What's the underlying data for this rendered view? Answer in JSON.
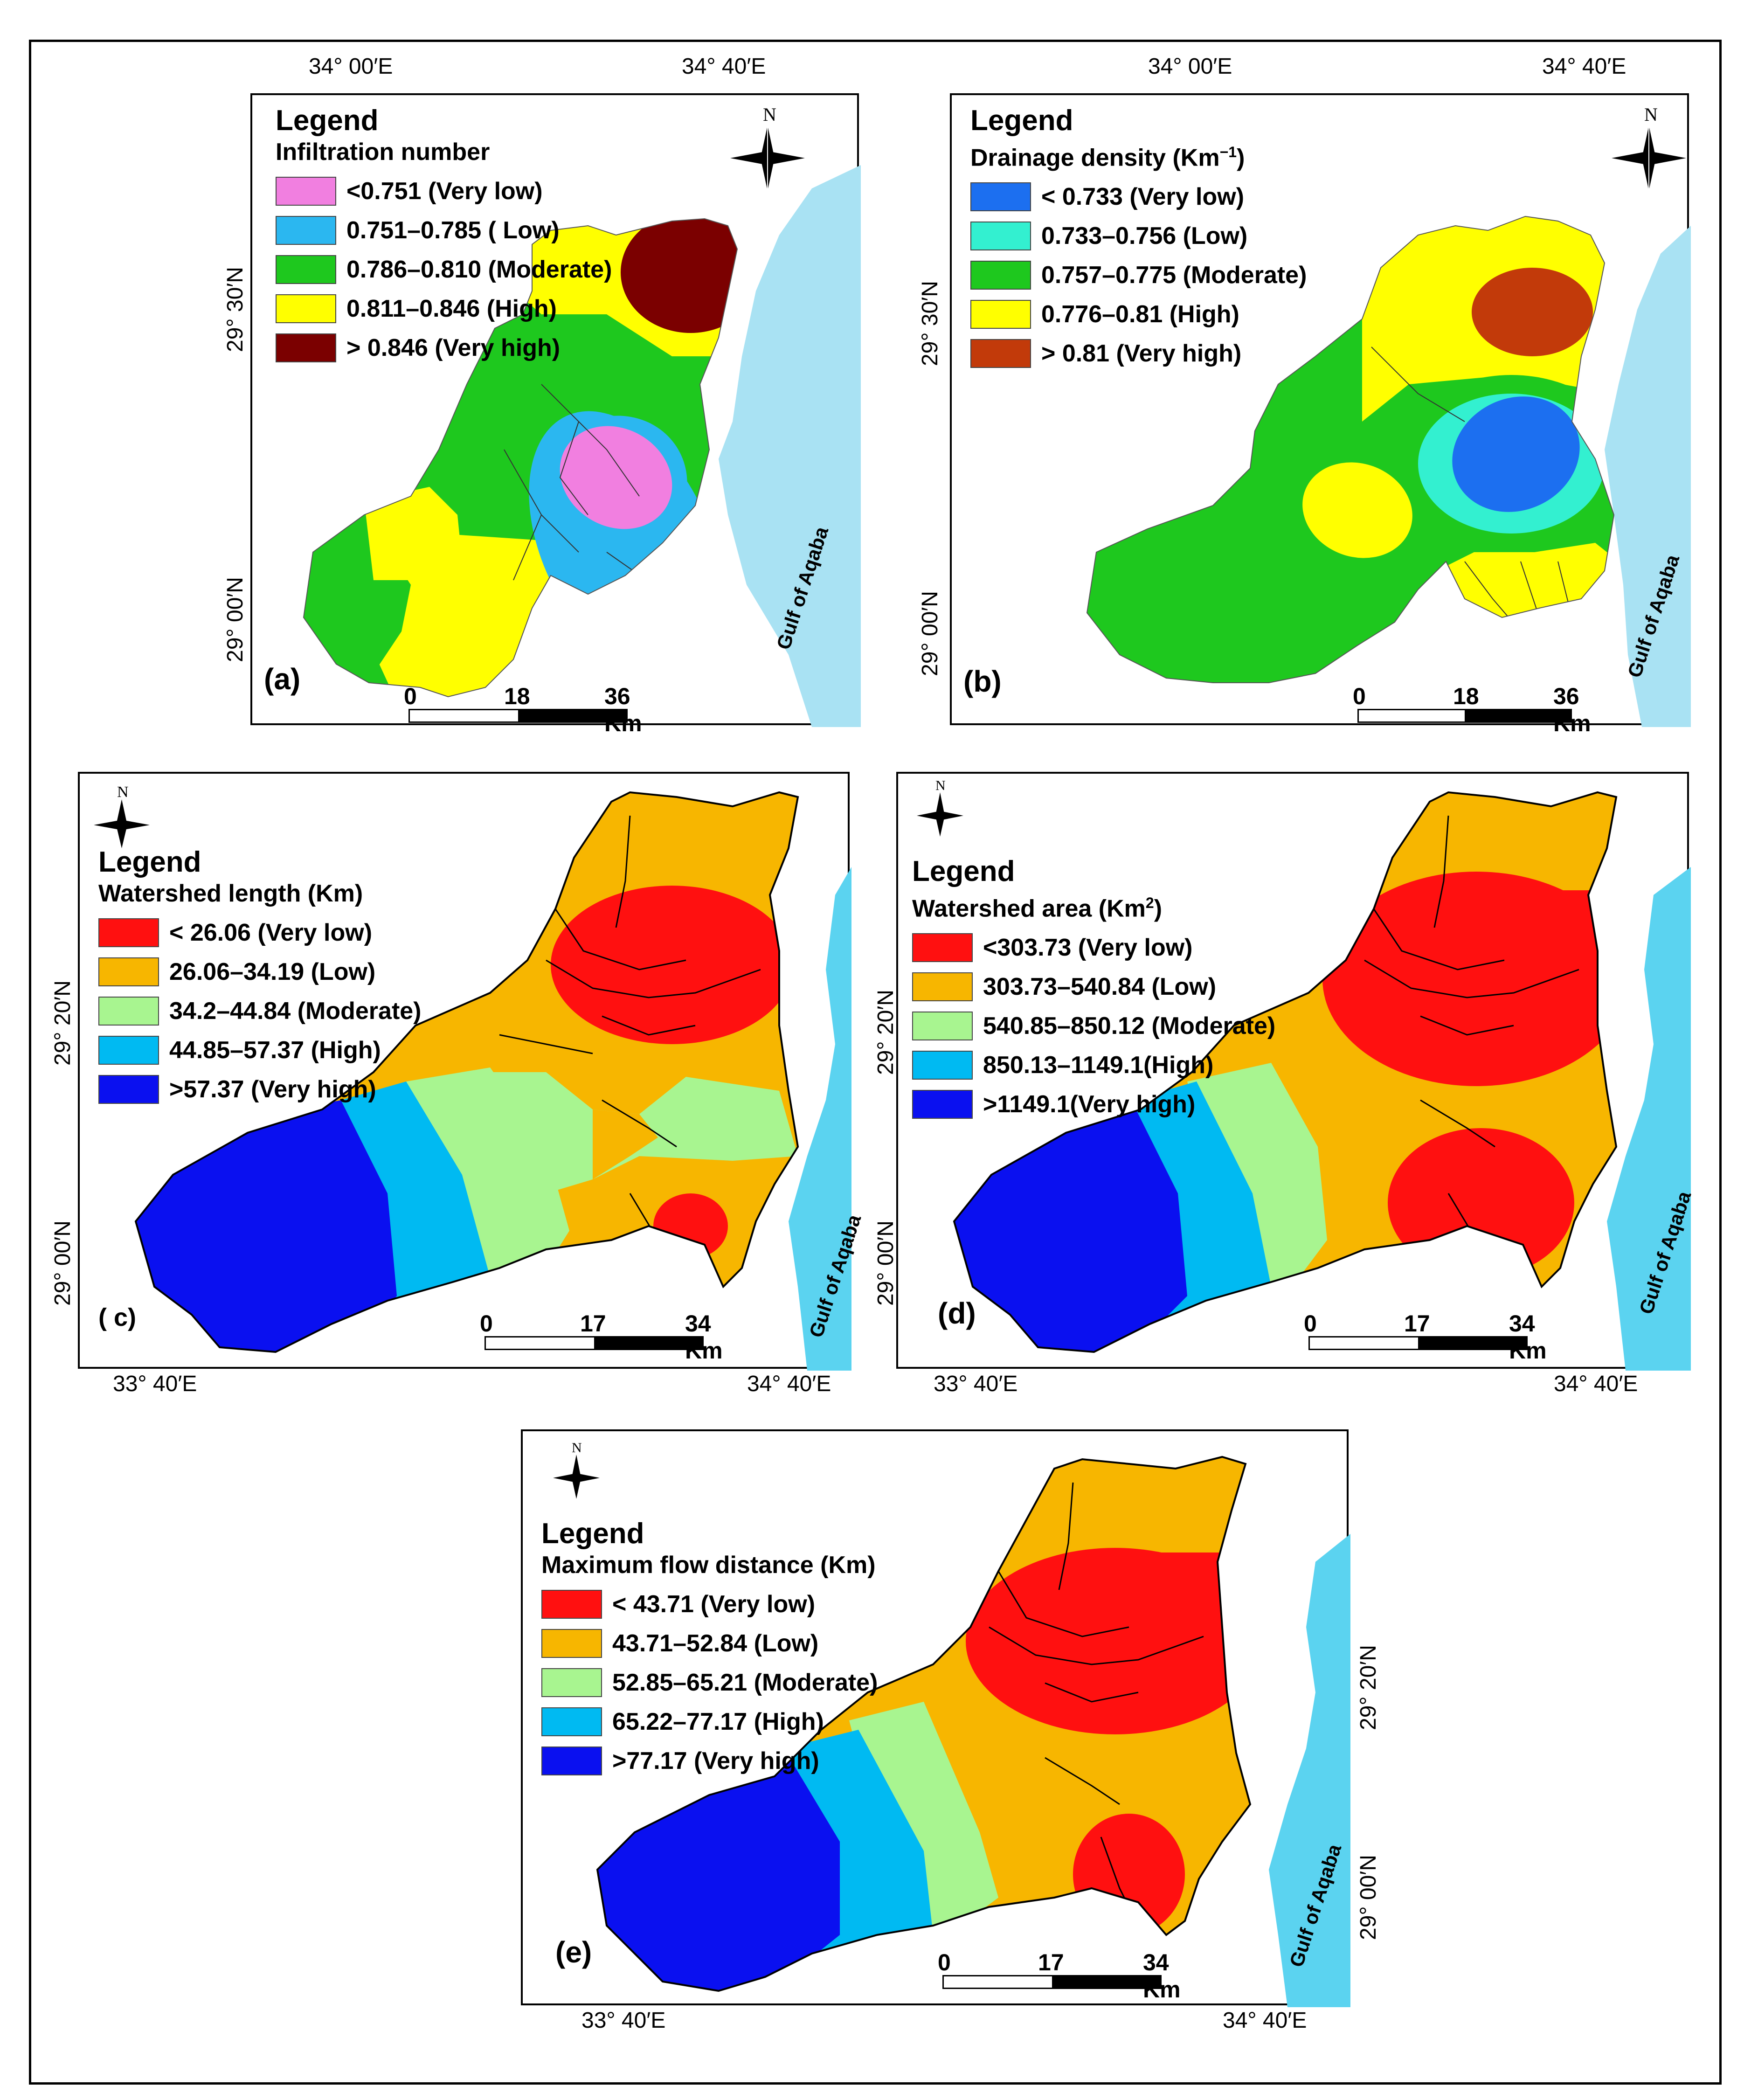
{
  "panels": {
    "a": {
      "label": "(a)",
      "legend_title": "Legend",
      "subtitle": "Infiltration number",
      "classes": [
        {
          "label": "<0.751 (Very low)",
          "color": "#f17fe0"
        },
        {
          "label": "0.751–0.785 ( Low)",
          "color": "#2bb7f0"
        },
        {
          "label": "0.786–0.810 (Moderate)",
          "color": "#1ec81e"
        },
        {
          "label": "0.811–0.846 (High)",
          "color": "#ffff00"
        },
        {
          "label": "> 0.846 (Very high)",
          "color": "#7b0000"
        }
      ],
      "scale": {
        "n0": "0",
        "n1": "18",
        "n2": "36 Km"
      },
      "coords": {
        "top1": "34° 00′E",
        "top2": "34° 40′E",
        "left1": "29° 30′N",
        "left2": "29° 00′N"
      }
    },
    "b": {
      "label": "(b)",
      "legend_title": "Legend",
      "subtitle": "Drainage density (Km",
      "subtitle_sup": "−1",
      "subtitle_end": ")",
      "classes": [
        {
          "label": "< 0.733 (Very low)",
          "color": "#1c6ff0"
        },
        {
          "label": "0.733–0.756 (Low)",
          "color": "#33f0d0"
        },
        {
          "label": "0.757–0.775 (Moderate)",
          "color": "#1ec81e"
        },
        {
          "label": "0.776–0.81 (High)",
          "color": "#ffff00"
        },
        {
          "label": "> 0.81 (Very high)",
          "color": "#c23a0a"
        }
      ],
      "scale": {
        "n0": "0",
        "n1": "18",
        "n2": "36 Km"
      },
      "coords": {
        "top1": "34° 00′E",
        "top2": "34° 40′E",
        "left1": "29° 30′N",
        "left2": "29° 00′N"
      }
    },
    "c": {
      "label": "( c)",
      "legend_title": "Legend",
      "subtitle": "Watershed length (Km)",
      "classes": [
        {
          "label": "< 26.06 (Very low)",
          "color": "#ff1010"
        },
        {
          "label": "26.06–34.19 (Low)",
          "color": "#f7b600"
        },
        {
          "label": "34.2–44.84 (Moderate)",
          "color": "#a8f590"
        },
        {
          "label": "44.85–57.37 (High)",
          "color": "#00baf2"
        },
        {
          "label": ">57.37 (Very high)",
          "color": "#0a10f0"
        }
      ],
      "scale": {
        "n0": "0",
        "n1": "17",
        "n2": "34 Km"
      },
      "coords": {
        "bottom1": "33° 40′E",
        "bottom2": "34° 40′E",
        "left1": "29° 20′N",
        "left2": "29° 00′N"
      }
    },
    "d": {
      "label": "(d)",
      "legend_title": "Legend",
      "subtitle": "Watershed area (Km",
      "subtitle_sup": "2",
      "subtitle_end": ")",
      "classes": [
        {
          "label": "<303.73 (Very low)",
          "color": "#ff1010"
        },
        {
          "label": "303.73–540.84 (Low)",
          "color": "#f7b600"
        },
        {
          "label": "540.85–850.12 (Moderate)",
          "color": "#a8f590"
        },
        {
          "label": "850.13–1149.1(High)",
          "color": "#00baf2"
        },
        {
          "label": ">1149.1(Very high)",
          "color": "#0a10f0"
        }
      ],
      "scale": {
        "n0": "0",
        "n1": "17",
        "n2": "34 Km"
      },
      "coords": {
        "bottom1": "33° 40′E",
        "bottom2": "34° 40′E",
        "left1": "29° 20′N",
        "left2": "29° 00′N"
      }
    },
    "e": {
      "label": "(e)",
      "legend_title": "Legend",
      "subtitle": "Maximum flow distance (Km)",
      "classes": [
        {
          "label": "< 43.71 (Very low)",
          "color": "#ff1010"
        },
        {
          "label": "43.71–52.84 (Low)",
          "color": "#f7b600"
        },
        {
          "label": "52.85–65.21 (Moderate)",
          "color": "#a8f590"
        },
        {
          "label": "65.22–77.17 (High)",
          "color": "#00baf2"
        },
        {
          "label": ">77.17 (Very high)",
          "color": "#0a10f0"
        }
      ],
      "scale": {
        "n0": "0",
        "n1": "17",
        "n2": "34 Km"
      },
      "coords": {
        "bottom1": "33° 40′E",
        "bottom2": "34° 40′E",
        "right1": "29° 20′N",
        "right2": "29° 00′N"
      }
    }
  },
  "common": {
    "gulf": "Gulf of Aqaba",
    "north": "N"
  },
  "colors": {
    "sea": "#a9e2f3",
    "sea_dark": "#5bd3f0"
  },
  "icons": [
    "north-arrow-icon"
  ]
}
